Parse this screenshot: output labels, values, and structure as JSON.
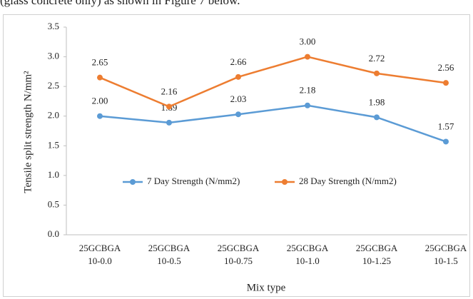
{
  "page_text": "(glass concrete only) as shown in Figure 7 below.",
  "chart_data": {
    "type": "line",
    "categories": [
      "25GCBGA 10-0.0",
      "25GCBGA 10-0.5",
      "25GCBGA 10-0.75",
      "25GCBGA 10-1.0",
      "25GCBGA 10-1.25",
      "25GCBGA 10-1.5"
    ],
    "series": [
      {
        "name": "7 Day Strength (N/mm2)",
        "color": "#5b9bd5",
        "values": [
          2.0,
          1.89,
          2.03,
          2.18,
          1.98,
          1.57
        ],
        "value_labels": [
          "2.00",
          "1.89",
          "2.03",
          "2.18",
          "1.98",
          "1.57"
        ]
      },
      {
        "name": "28 Day Strength (N/mm2)",
        "color": "#ed7d31",
        "values": [
          2.65,
          2.16,
          2.66,
          3.0,
          2.72,
          2.56
        ],
        "value_labels": [
          "2.65",
          "2.16",
          "2.66",
          "3.00",
          "2.72",
          "2.56"
        ]
      }
    ],
    "xlabel": "Mix type",
    "ylabel": "Tensile split strength N/mm²",
    "ylim": [
      0,
      3.5
    ],
    "yticks": [
      {
        "value": 0,
        "label": "0.0"
      },
      0.5,
      {
        "value": 1,
        "label": "1.0"
      },
      1.5,
      {
        "value": 2,
        "label": "2.0"
      },
      2.5,
      {
        "value": 3,
        "label": "3.0"
      },
      3.5
    ],
    "grid": false,
    "legend": "center"
  }
}
